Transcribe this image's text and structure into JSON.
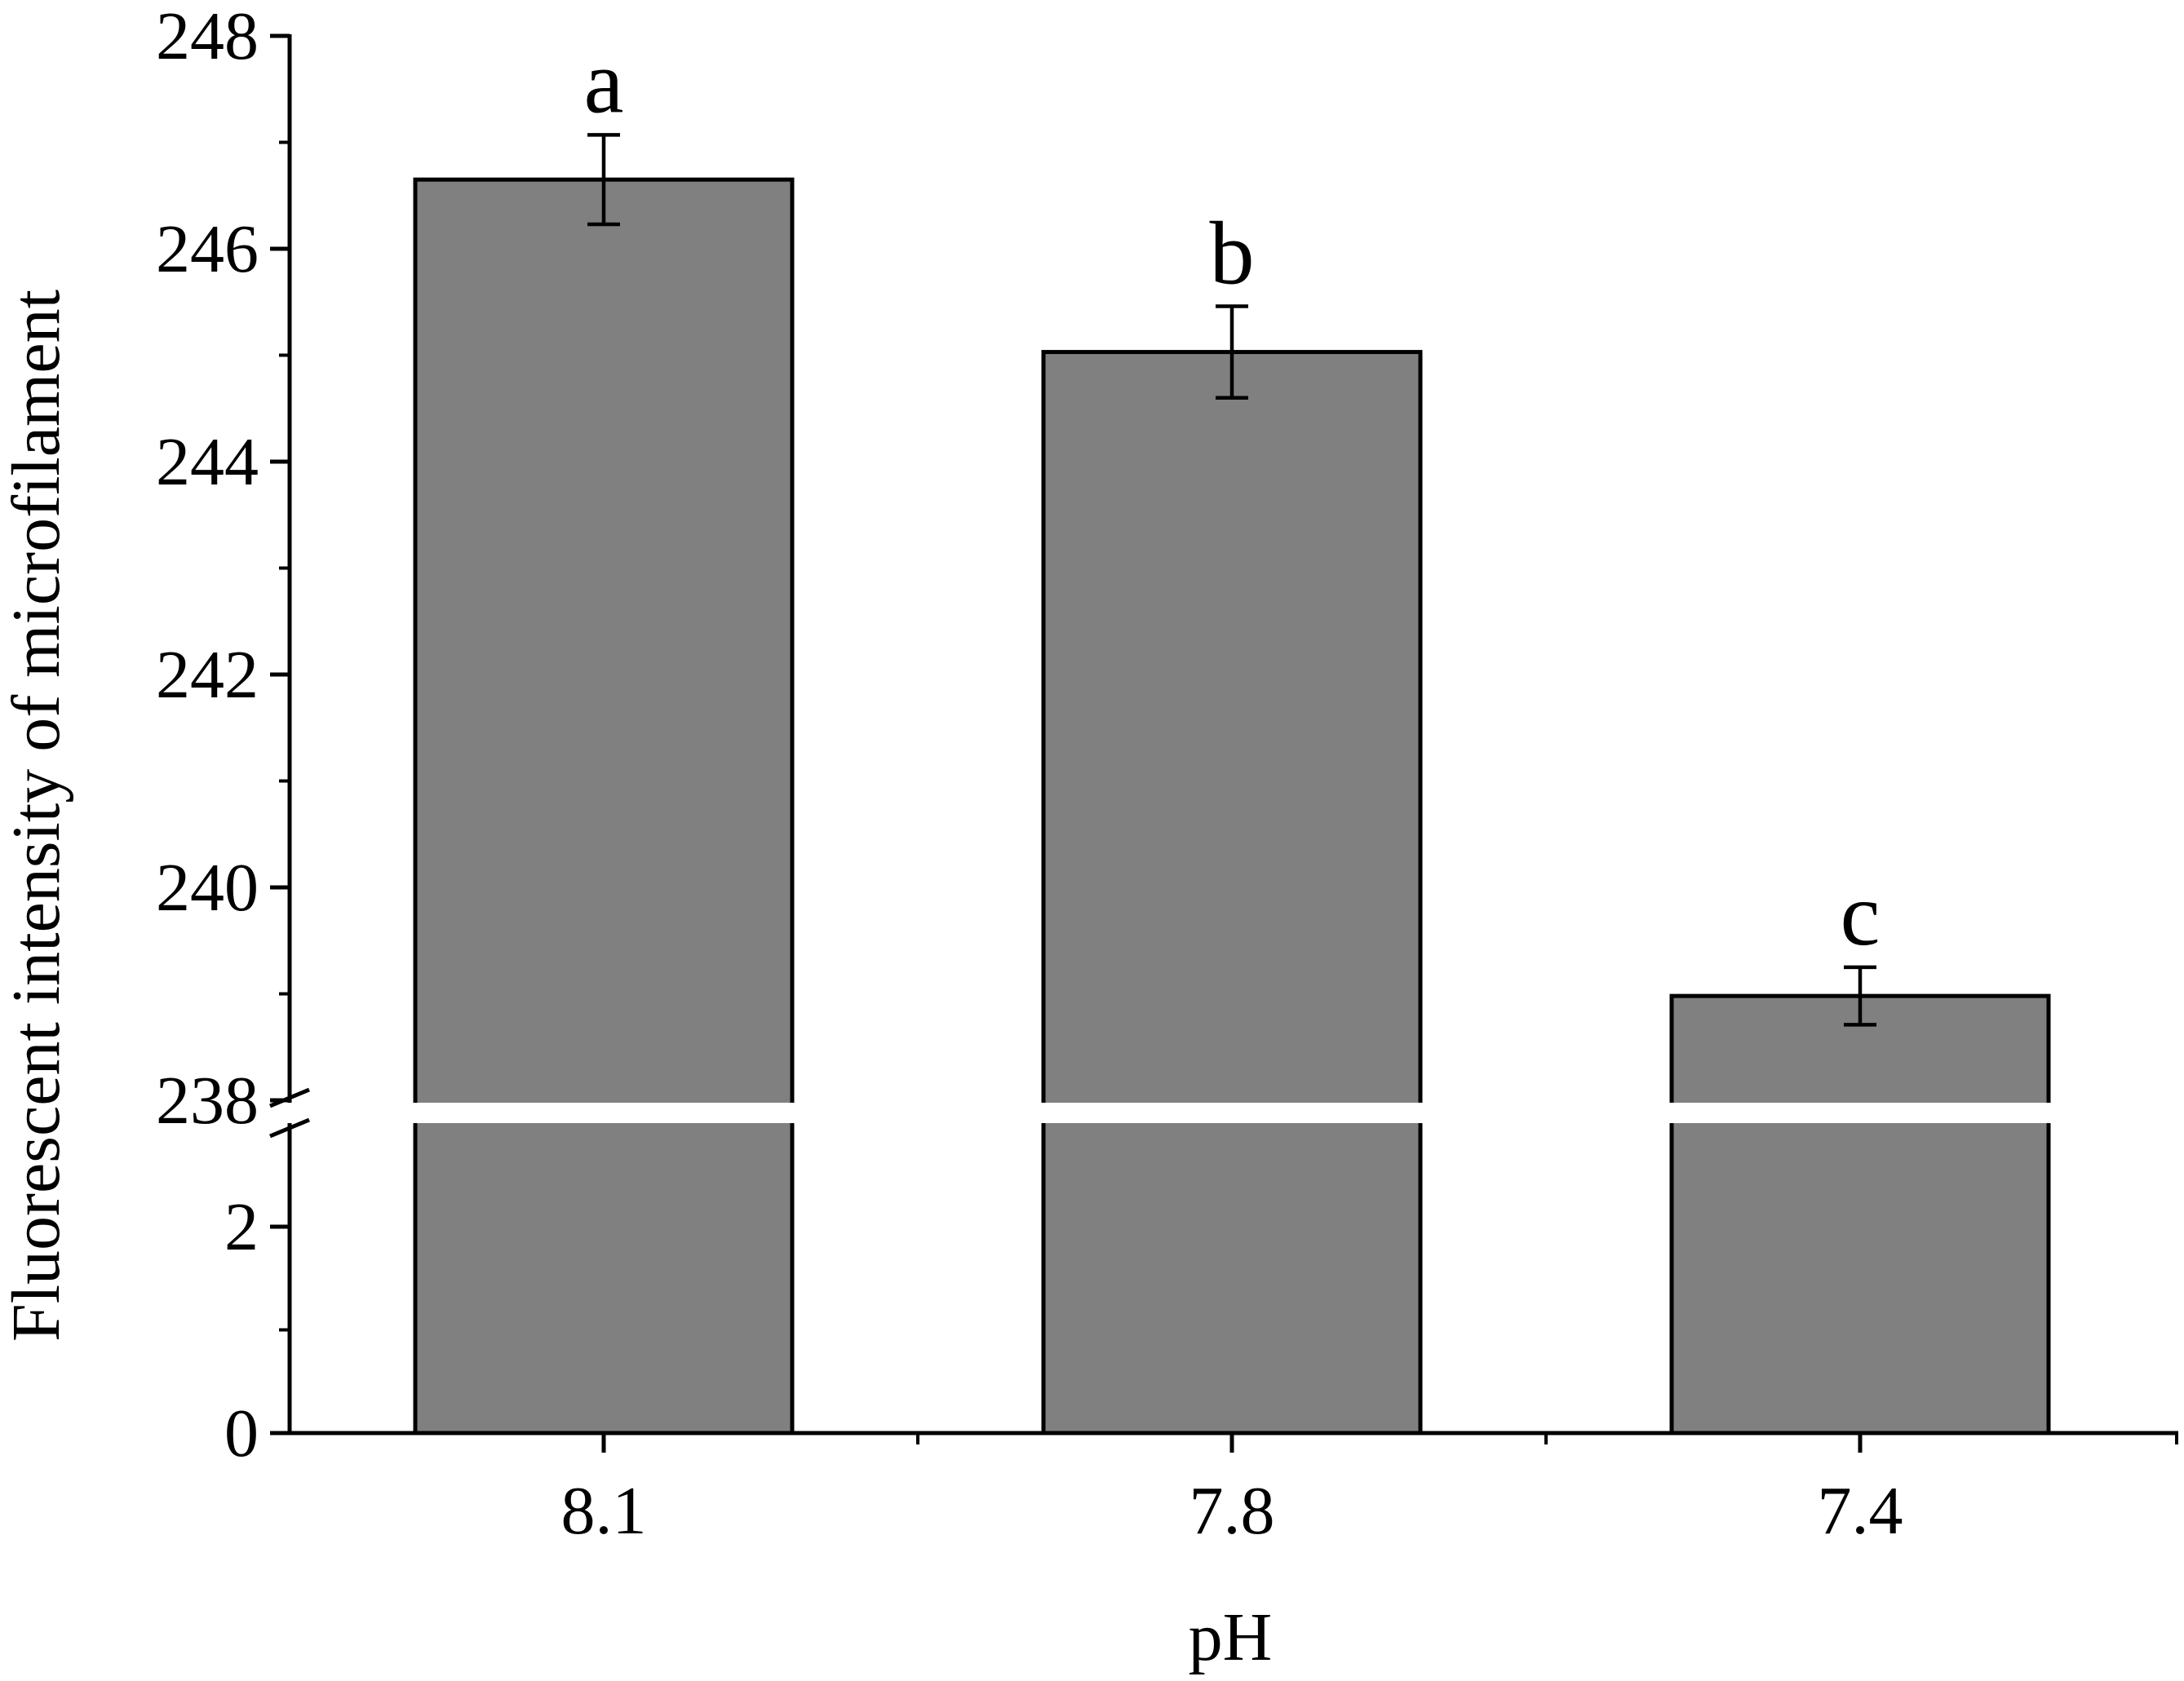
{
  "chart_data": {
    "type": "bar",
    "xlabel": "pH",
    "ylabel": "Fluorescent intensity of microfilament",
    "categories": [
      "8.1",
      "7.8",
      "7.4"
    ],
    "values": [
      246.65,
      245.03,
      238.98
    ],
    "errors": [
      0.42,
      0.43,
      0.27
    ],
    "significance_letters": [
      "a",
      "b",
      "c"
    ],
    "axis_break": true,
    "y_segments": [
      {
        "ylim": [
          0,
          3
        ],
        "major_ticks": [
          0,
          2
        ],
        "minor_ticks": [
          1
        ]
      },
      {
        "ylim": [
          238,
          248
        ],
        "major_ticks": [
          238,
          240,
          242,
          244,
          246,
          248
        ],
        "minor_ticks": [
          239,
          241,
          243,
          245,
          247
        ]
      }
    ],
    "grid": false,
    "legend": "none",
    "colors": {
      "bar_fill": "#808080",
      "bar_stroke": "#000000",
      "axis": "#000000",
      "background": "#ffffff"
    }
  }
}
